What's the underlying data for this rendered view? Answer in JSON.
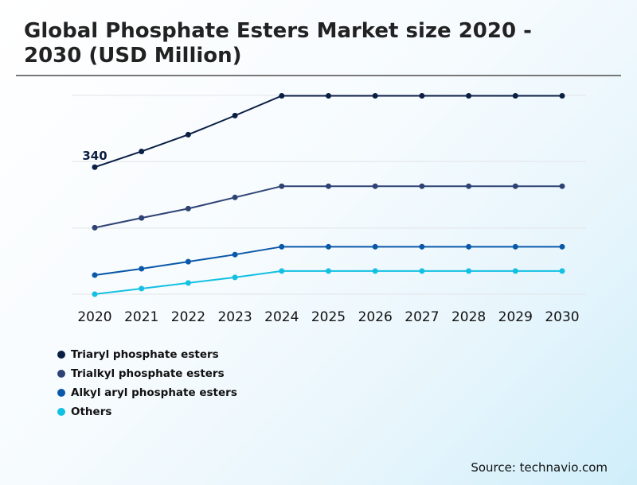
{
  "title": "Global Phosphate Esters Market size 2020 - 2030 (USD Million)",
  "source": "Source: technavio.com",
  "chart_data": {
    "type": "line",
    "title": "Global Phosphate Esters Market size 2020 - 2030 (USD Million)",
    "xlabel": "",
    "ylabel": "",
    "categories": [
      "2020",
      "2021",
      "2022",
      "2023",
      "2024",
      "2025",
      "2026",
      "2027",
      "2028",
      "2029",
      "2030"
    ],
    "ylim": [
      0,
      532
    ],
    "grid": true,
    "gridlines": [
      0,
      177,
      355,
      532
    ],
    "legend_position": "bottom-left",
    "annotations": [
      {
        "text": "340",
        "series": 0,
        "index": 0
      }
    ],
    "series": [
      {
        "name": "Triaryl phosphate esters",
        "color": "#0b1f45",
        "values": [
          340,
          382,
          427,
          478,
          531,
          531,
          531,
          531,
          531,
          531,
          531
        ]
      },
      {
        "name": "Trialkyl phosphate esters",
        "color": "#2e4374",
        "values": [
          178,
          204,
          229,
          259,
          289,
          289,
          289,
          289,
          289,
          289,
          289
        ]
      },
      {
        "name": "Alkyl aryl phosphate esters",
        "color": "#0a58a8",
        "values": [
          51,
          68,
          87,
          106,
          127,
          127,
          127,
          127,
          127,
          127,
          127
        ]
      },
      {
        "name": "Others",
        "color": "#12c0e2",
        "values": [
          0,
          15,
          30,
          45,
          62,
          62,
          62,
          62,
          62,
          62,
          62
        ]
      }
    ]
  }
}
